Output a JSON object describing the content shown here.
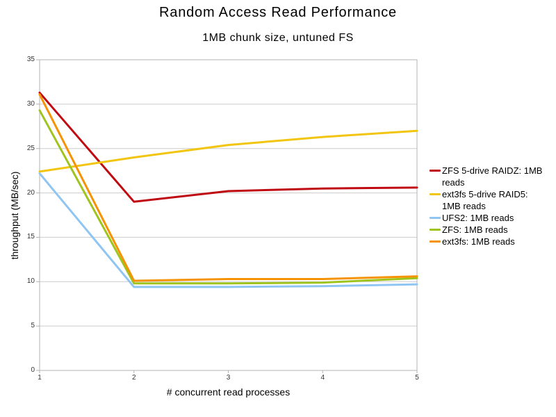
{
  "page": {
    "background": "#ffffff"
  },
  "chart_data": {
    "type": "line",
    "title": "Random Access Read Performance",
    "subtitle": "1MB chunk size, untuned FS",
    "xlabel": "# concurrent read processes",
    "ylabel": "throughput (MB/sec)",
    "x": [
      1,
      2,
      3,
      4,
      5
    ],
    "xticks": [
      "1",
      "2",
      "3",
      "4",
      "5"
    ],
    "ylim": [
      0,
      35
    ],
    "ytick_step": 5,
    "grid": "horizontal",
    "legend_position": "right",
    "axis_color": "#b3b3b3",
    "grid_color": "#cccccc",
    "tick_label_color": "#333333",
    "line_width": 3,
    "series": [
      {
        "name": "ZFS 5-drive RAIDZ: 1MB reads",
        "color": "#bf0a12",
        "values": [
          31.3,
          19.0,
          20.2,
          20.5,
          20.6
        ]
      },
      {
        "name": "ext3fs 5-drive RAID5: 1MB reads",
        "color": "#f2c511",
        "values": [
          22.4,
          24.0,
          25.4,
          26.3,
          27.0
        ]
      },
      {
        "name": "UFS2: 1MB reads",
        "color": "#8fc5f2",
        "values": [
          22.2,
          9.4,
          9.4,
          9.5,
          9.7
        ]
      },
      {
        "name": "ZFS: 1MB reads",
        "color": "#9ec41d",
        "values": [
          29.3,
          9.8,
          9.8,
          9.9,
          10.4
        ]
      },
      {
        "name": "ext3fs: 1MB reads",
        "color": "#f59305",
        "values": [
          31.1,
          10.1,
          10.3,
          10.3,
          10.6
        ]
      }
    ]
  }
}
